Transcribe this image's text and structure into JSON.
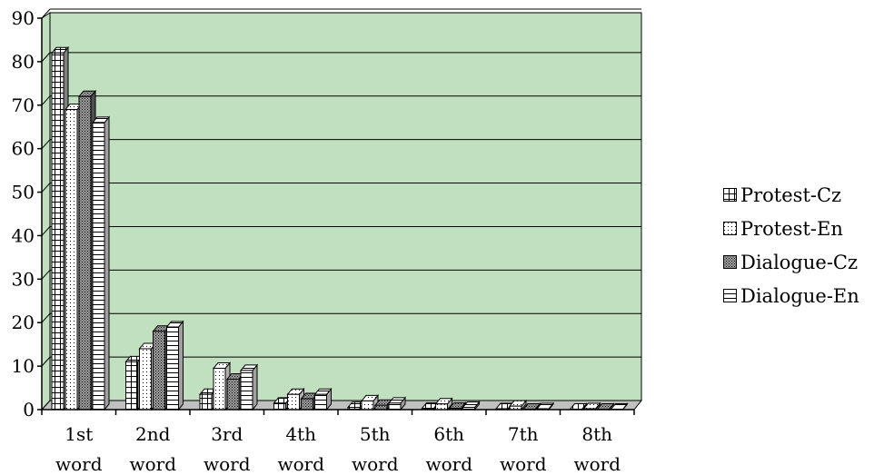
{
  "chart_data": {
    "type": "bar",
    "title": "",
    "xlabel": "",
    "ylabel": "",
    "ylim": [
      0,
      90
    ],
    "yticks": [
      "0",
      "10",
      "20",
      "30",
      "40",
      "50",
      "60",
      "70",
      "80",
      "90"
    ],
    "categories": [
      [
        "1st",
        "word"
      ],
      [
        "2nd",
        "word"
      ],
      [
        "3rd",
        "word"
      ],
      [
        "4th",
        "word"
      ],
      [
        "5th",
        "word"
      ],
      [
        "6th",
        "word"
      ],
      [
        "7th",
        "word"
      ],
      [
        "8th",
        "word"
      ]
    ],
    "series": [
      {
        "name": "Protest-Cz",
        "pattern": "grid",
        "values": [
          82,
          11,
          3.5,
          1.5,
          0.5,
          0.3,
          0.2,
          0.1
        ]
      },
      {
        "name": "Protest-En",
        "pattern": "dotted",
        "values": [
          69,
          14,
          9.5,
          3.5,
          2,
          1.3,
          0.8,
          0.2
        ]
      },
      {
        "name": "Dialogue-Cz",
        "pattern": "dense",
        "values": [
          72,
          18,
          7,
          2.5,
          1,
          0.3,
          0.1,
          0.1
        ]
      },
      {
        "name": "Dialogue-En",
        "pattern": "hlines",
        "values": [
          66,
          19,
          9,
          3.5,
          1.5,
          0.5,
          0.2,
          0.1
        ]
      }
    ],
    "grid": true,
    "plot_background": "#c0e0c0",
    "legend_position": "right"
  }
}
